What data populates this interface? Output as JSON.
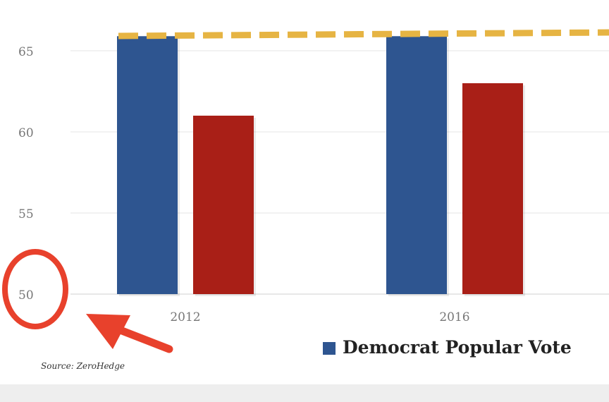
{
  "chart_data": {
    "type": "bar",
    "categories": [
      "2012",
      "2016"
    ],
    "series": [
      {
        "name": "Democrat Popular Vote",
        "color": "#2e5590",
        "values": [
          65.9,
          65.9
        ]
      },
      {
        "color": "#a91f17",
        "values": [
          61,
          63
        ]
      }
    ],
    "reference_line": {
      "value": 66,
      "color": "#e6b443",
      "style": "dashed"
    },
    "y_ticks": [
      50,
      55,
      60,
      65
    ],
    "ylim": [
      50,
      67
    ],
    "grid": true,
    "legend": {
      "entries": [
        "Democrat Popular Vote"
      ],
      "position": "bottom-right"
    },
    "source": "Source: ZeroHedge"
  },
  "annotation": {
    "circle_color": "#e8412c",
    "arrow_color": "#e8412c"
  }
}
